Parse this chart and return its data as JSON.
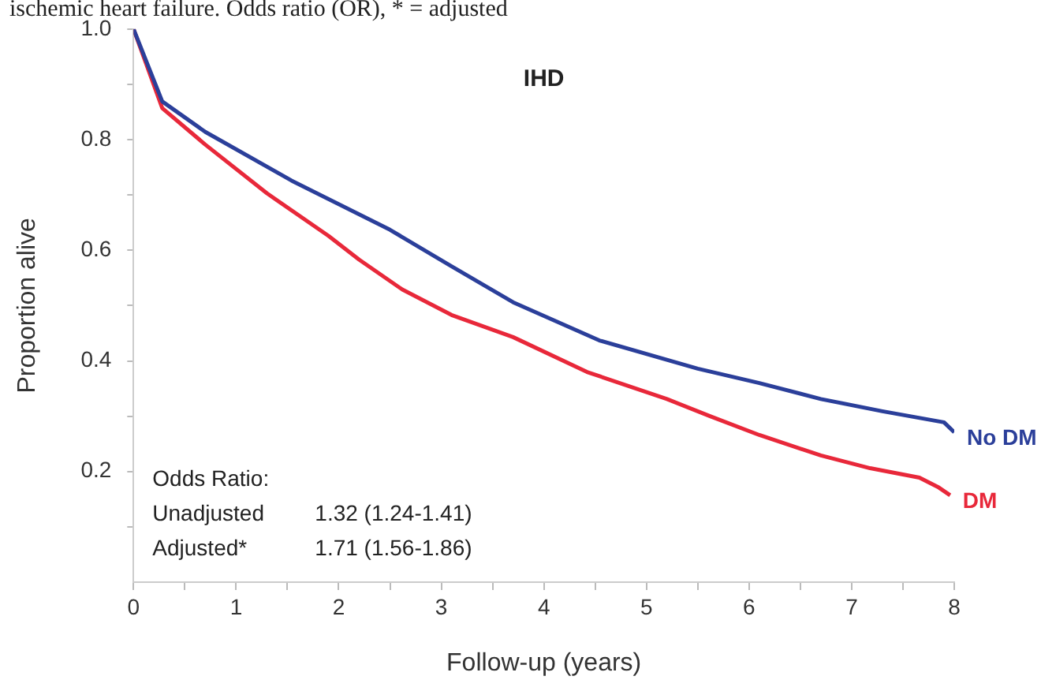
{
  "chart_data": {
    "type": "line",
    "title": "IHD",
    "xlabel": "Follow-up (years)",
    "ylabel": "Proportion alive",
    "xlim": [
      0,
      8
    ],
    "xticks": [
      0,
      {
        "value": 0.5,
        "label": null
      },
      1,
      {
        "value": 1.5,
        "label": null
      },
      2,
      {
        "value": 2.5,
        "label": null
      },
      3,
      {
        "value": 3.5,
        "label": null
      },
      4,
      {
        "value": 4.5,
        "label": null
      },
      5,
      {
        "value": 5.5,
        "label": null
      },
      6,
      {
        "value": 6.5,
        "label": null
      },
      7,
      {
        "value": 7.5,
        "label": null
      },
      8
    ],
    "ylim": [
      0,
      1
    ],
    "yticks": [
      {
        "value": 0.1,
        "label": null
      },
      0.2,
      {
        "value": 0.3,
        "label": null
      },
      0.4,
      {
        "value": 0.5,
        "label": null
      },
      0.6,
      {
        "value": 0.7,
        "label": null
      },
      0.8,
      {
        "value": 0.9,
        "label": null
      },
      {
        "value": 1,
        "label": "1.0"
      }
    ],
    "grid": false,
    "legend": false,
    "marker": "none",
    "line_style": "solid",
    "annotations": [
      "ischemic heart failure. Odds ratio (OR), * = adjusted",
      "Odds Ratio:",
      "Unadjusted",
      "1.32 (1.24-1.41)",
      "Adjusted*",
      "1.71 (1.56-1.86)"
    ],
    "series": [
      {
        "name": "No DM",
        "color": "#2b3f9a",
        "x": [
          0,
          0.28,
          0.7,
          1.54,
          2.5,
          3.1,
          3.7,
          4.54,
          5.5,
          6.1,
          6.7,
          7.3,
          7.9,
          8.0
        ],
        "values": [
          1.0,
          0.869,
          0.814,
          0.726,
          0.637,
          0.571,
          0.506,
          0.437,
          0.386,
          0.36,
          0.331,
          0.309,
          0.289,
          0.271
        ]
      },
      {
        "name": "DM",
        "color": "#e8283a",
        "x": [
          0,
          0.28,
          0.7,
          1.3,
          1.9,
          2.2,
          2.62,
          3.1,
          3.7,
          4.42,
          5.2,
          5.62,
          6.1,
          6.7,
          7.18,
          7.66,
          7.85,
          7.96
        ],
        "values": [
          1.0,
          0.857,
          0.791,
          0.703,
          0.626,
          0.583,
          0.529,
          0.483,
          0.443,
          0.38,
          0.331,
          0.3,
          0.266,
          0.229,
          0.206,
          0.189,
          0.171,
          0.157
        ]
      }
    ]
  }
}
